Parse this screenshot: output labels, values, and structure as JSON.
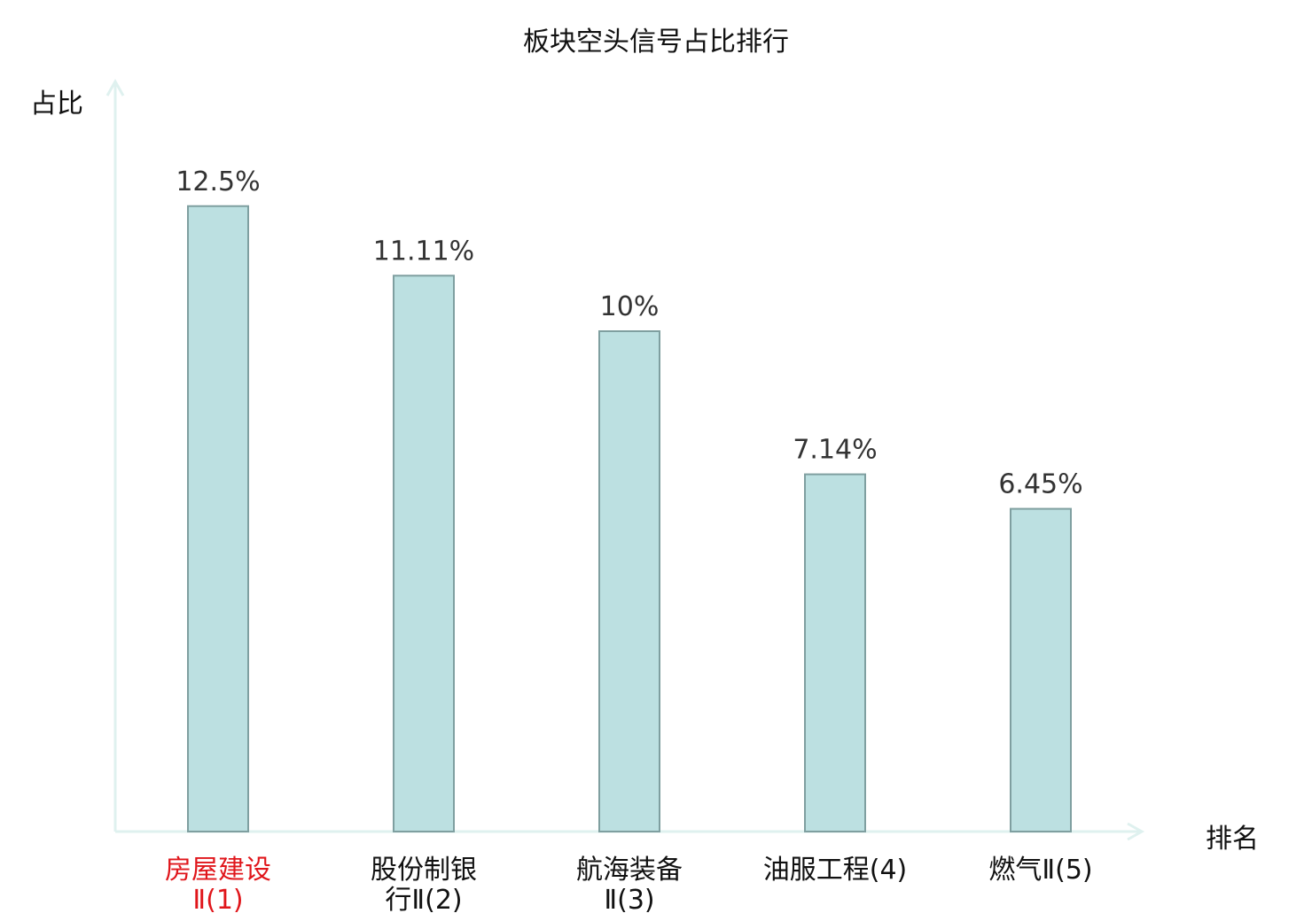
{
  "chart_data": {
    "type": "bar",
    "title": "板块空头信号占比排行",
    "ylabel": "占比",
    "xlabel": "排名",
    "categories": [
      {
        "line1": "房屋建设",
        "line2": "Ⅱ(1)"
      },
      {
        "line1": "股份制银",
        "line2": "行Ⅱ(2)"
      },
      {
        "line1": "航海装备",
        "line2": "Ⅱ(3)"
      },
      {
        "line1": "油服工程(4)",
        "line2": ""
      },
      {
        "line1": "燃气Ⅱ(5)",
        "line2": ""
      }
    ],
    "values": [
      12.5,
      11.11,
      10,
      7.14,
      6.45
    ],
    "value_labels": [
      "12.5%",
      "11.11%",
      "10%",
      "7.14%",
      "6.45%"
    ],
    "highlight_index": 0,
    "grid": false,
    "colors": {
      "bar_fill": "#bce0e1",
      "bar_stroke": "#7f9fa0",
      "axis": "#dff1ef",
      "highlight_label": "#e0161b"
    }
  }
}
